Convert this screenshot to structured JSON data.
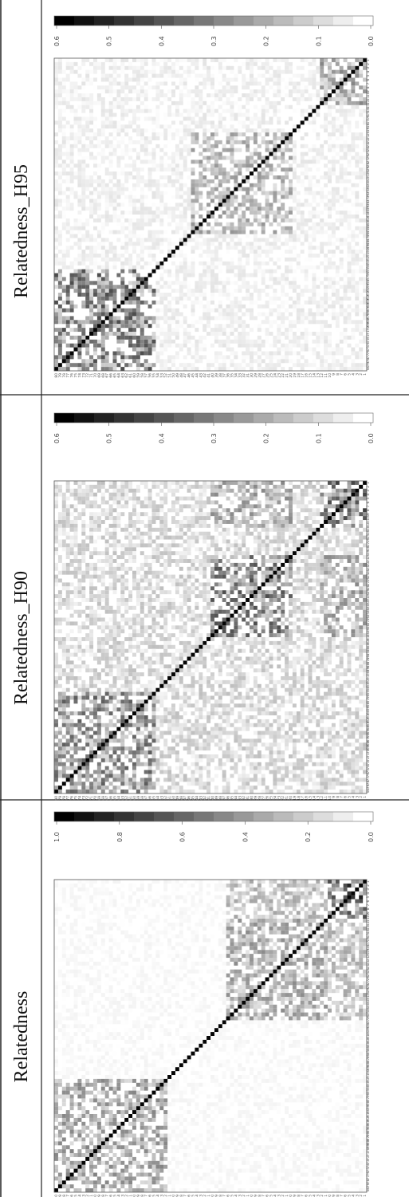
{
  "chart_data": [
    {
      "type": "heatmap",
      "title": "Relatedness",
      "n": 80,
      "tick_labels": [
        "1",
        "2",
        "3",
        "4",
        "5",
        "6",
        "7",
        "8",
        "9",
        "10",
        "11",
        "12",
        "13",
        "14",
        "15",
        "16",
        "17",
        "18",
        "19",
        "20",
        "21",
        "22",
        "23",
        "24",
        "25",
        "26",
        "27",
        "28",
        "29",
        "30",
        "31",
        "32",
        "33",
        "34",
        "35",
        "36",
        "37",
        "38",
        "39",
        "40",
        "41",
        "42",
        "43",
        "44",
        "45",
        "46",
        "47",
        "48",
        "49",
        "50",
        "51",
        "52",
        "53",
        "54",
        "55",
        "56",
        "57",
        "58",
        "59",
        "60",
        "61",
        "62",
        "63",
        "64",
        "65",
        "66",
        "67",
        "68",
        "69",
        "70",
        "71",
        "72",
        "73",
        "74",
        "75",
        "76",
        "77",
        "78",
        "79",
        "80"
      ],
      "value_range": [
        0,
        1.0
      ],
      "colorbar_ticks": [
        "0.0",
        "0.2",
        "0.4",
        "0.6",
        "0.8",
        "1.0"
      ],
      "colorscale": [
        "#ffffff",
        "#000000"
      ],
      "block_structure": [
        {
          "rows": [
            1,
            10
          ],
          "cols": [
            1,
            10
          ],
          "level": 0.52
        },
        {
          "rows": [
            11,
            36
          ],
          "cols": [
            11,
            36
          ],
          "level": 0.28
        },
        {
          "rows": [
            52,
            80
          ],
          "cols": [
            52,
            80
          ],
          "level": 0.3
        },
        {
          "rows": [
            1,
            10
          ],
          "cols": [
            11,
            36
          ],
          "level": 0.22
        }
      ],
      "background_level": 0.04
    },
    {
      "type": "heatmap",
      "title": "Relatedness_H90",
      "n": 80,
      "tick_labels": [
        "1",
        "2",
        "3",
        "4",
        "5",
        "6",
        "7",
        "8",
        "9",
        "10",
        "11",
        "12",
        "13",
        "14",
        "15",
        "16",
        "17",
        "18",
        "19",
        "20",
        "21",
        "22",
        "23",
        "24",
        "25",
        "26",
        "27",
        "28",
        "29",
        "30",
        "31",
        "32",
        "33",
        "34",
        "35",
        "36",
        "37",
        "38",
        "39",
        "40",
        "41",
        "42",
        "43",
        "44",
        "45",
        "46",
        "47",
        "48",
        "49",
        "50",
        "51",
        "52",
        "53",
        "54",
        "55",
        "56",
        "57",
        "58",
        "59",
        "60",
        "61",
        "62",
        "63",
        "64",
        "65",
        "66",
        "67",
        "68",
        "69",
        "70",
        "71",
        "72",
        "73",
        "74",
        "75",
        "76",
        "77",
        "78",
        "79",
        "80"
      ],
      "value_range": [
        0,
        0.6
      ],
      "colorbar_ticks": [
        "0.0",
        "0.1",
        "0.2",
        "0.3",
        "0.4",
        "0.5",
        "0.6"
      ],
      "colorscale": [
        "#ffffff",
        "#000000"
      ],
      "block_structure": [
        {
          "rows": [
            1,
            12
          ],
          "cols": [
            1,
            12
          ],
          "level": 0.28
        },
        {
          "rows": [
            20,
            40
          ],
          "cols": [
            20,
            40
          ],
          "level": 0.26
        },
        {
          "rows": [
            55,
            80
          ],
          "cols": [
            55,
            80
          ],
          "level": 0.24
        },
        {
          "rows": [
            1,
            12
          ],
          "cols": [
            20,
            40
          ],
          "level": 0.18
        }
      ],
      "background_level": 0.1
    },
    {
      "type": "heatmap",
      "title": "Relatedness_H95",
      "n": 80,
      "tick_labels": [
        "1",
        "2",
        "3",
        "4",
        "5",
        "6",
        "7",
        "8",
        "9",
        "10",
        "11",
        "12",
        "13",
        "14",
        "15",
        "16",
        "17",
        "18",
        "19",
        "20",
        "21",
        "22",
        "23",
        "24",
        "25",
        "26",
        "27",
        "28",
        "29",
        "30",
        "31",
        "32",
        "33",
        "34",
        "35",
        "36",
        "37",
        "38",
        "39",
        "40",
        "41",
        "42",
        "43",
        "44",
        "45",
        "46",
        "47",
        "48",
        "49",
        "50",
        "51",
        "52",
        "53",
        "54",
        "55",
        "56",
        "57",
        "58",
        "59",
        "60",
        "61",
        "62",
        "63",
        "64",
        "65",
        "66",
        "67",
        "68",
        "69",
        "70",
        "71",
        "72",
        "73",
        "74",
        "75",
        "76",
        "77",
        "78",
        "79",
        "80"
      ],
      "value_range": [
        0,
        0.6
      ],
      "colorbar_ticks": [
        "0.0",
        "0.1",
        "0.2",
        "0.3",
        "0.4",
        "0.5",
        "0.6"
      ],
      "colorscale": [
        "#ffffff",
        "#000000"
      ],
      "block_structure": [
        {
          "rows": [
            1,
            12
          ],
          "cols": [
            1,
            12
          ],
          "level": 0.18
        },
        {
          "rows": [
            20,
            45
          ],
          "cols": [
            20,
            45
          ],
          "level": 0.16
        },
        {
          "rows": [
            55,
            80
          ],
          "cols": [
            55,
            80
          ],
          "level": 0.26
        }
      ],
      "background_level": 0.05
    }
  ]
}
